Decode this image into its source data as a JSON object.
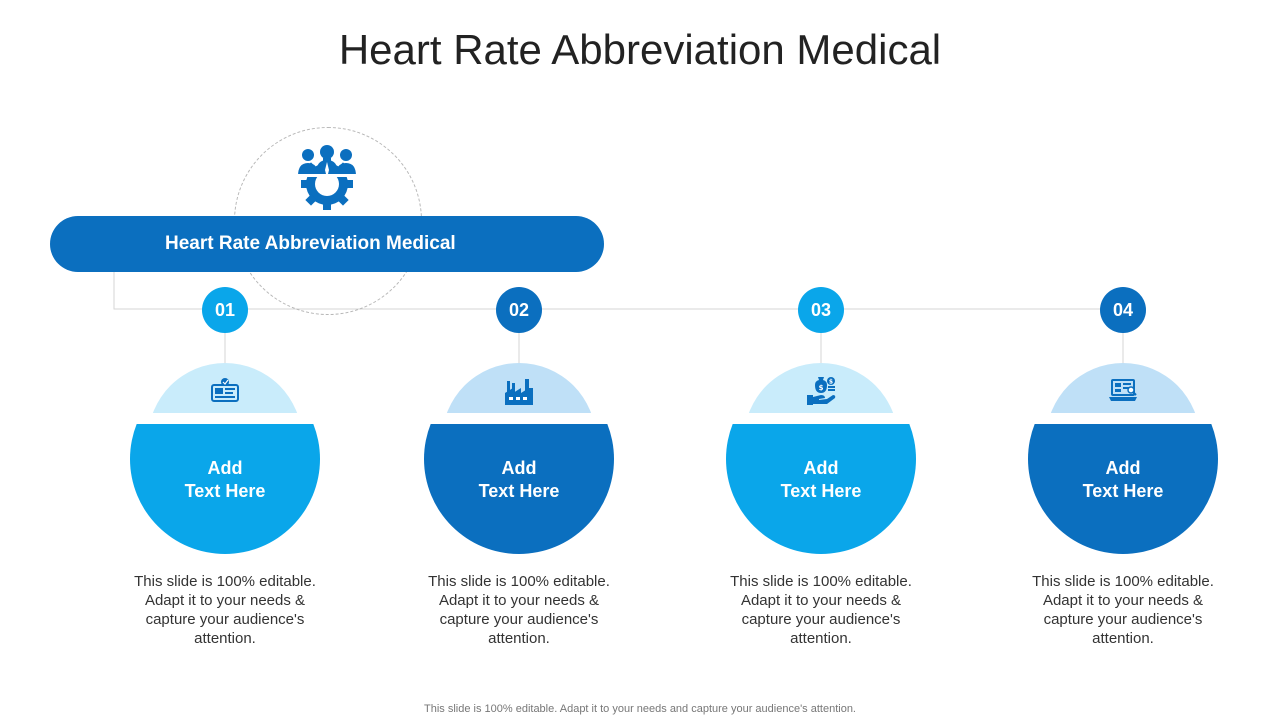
{
  "slide": {
    "title": "Heart Rate Abbreviation Medical",
    "header_label": "Heart Rate Abbreviation Medical",
    "header_icon": "team-gear-icon",
    "footer_note": "This slide is 100% editable. Adapt it to your needs and capture your audience's attention."
  },
  "colors": {
    "dark_blue": "#0b6fbf",
    "light_blue": "#0aa6ea",
    "pale_blue": "#c9ecfb",
    "pale_blue_alt": "#bfe0f7",
    "icon_blue": "#0b6fbf"
  },
  "items": [
    {
      "number": "01",
      "icon": "id-card-icon",
      "title_line1": "Add",
      "title_line2": "Text Here",
      "description": "This slide is 100% editable. Adapt it to your needs & capture your audience's attention."
    },
    {
      "number": "02",
      "icon": "factory-icon",
      "title_line1": "Add",
      "title_line2": "Text Here",
      "description": "This slide is 100% editable. Adapt it to your needs & capture your audience's attention."
    },
    {
      "number": "03",
      "icon": "money-hand-icon",
      "title_line1": "Add",
      "title_line2": "Text Here",
      "description": "This slide is 100% editable. Adapt it to your needs & capture your audience's attention."
    },
    {
      "number": "04",
      "icon": "laptop-search-icon",
      "title_line1": "Add",
      "title_line2": "Text Here",
      "description": "This slide is 100% editable. Adapt it to your needs & capture your audience's attention."
    }
  ]
}
